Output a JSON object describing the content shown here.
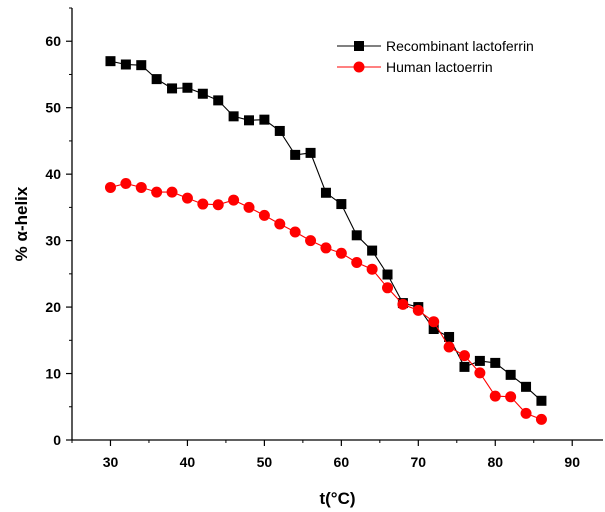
{
  "chart_data": {
    "type": "line",
    "xlabel": "t(°C)",
    "ylabel": "% α-helix",
    "xlim": [
      25,
      94
    ],
    "ylim": [
      0,
      65
    ],
    "xticks": [
      "30",
      "40",
      "50",
      "60",
      "70",
      "80",
      "90"
    ],
    "yticks": [
      "0",
      "10",
      "20",
      "30",
      "40",
      "50",
      "60"
    ],
    "grid": false,
    "legend_position": "top-right",
    "series": [
      {
        "name": "Recombinant lactoferrin",
        "color": "#000000",
        "marker": "square",
        "x": [
          30,
          32,
          34,
          36,
          38,
          40,
          42,
          44,
          46,
          48,
          50,
          52,
          54,
          56,
          58,
          60,
          62,
          64,
          66,
          68,
          70,
          72,
          74,
          76,
          78,
          80,
          82,
          84,
          86
        ],
        "y": [
          57.0,
          56.5,
          56.4,
          54.3,
          52.9,
          53.0,
          52.1,
          51.1,
          48.7,
          48.1,
          48.2,
          46.5,
          42.9,
          43.2,
          37.2,
          35.5,
          30.8,
          28.5,
          24.9,
          20.6,
          20.0,
          16.7,
          15.5,
          11.0,
          11.9,
          11.6,
          9.8,
          8.0,
          5.9
        ]
      },
      {
        "name": "Human lactoerrin",
        "color": "#ff0000",
        "marker": "circle",
        "x": [
          30,
          32,
          34,
          36,
          38,
          40,
          42,
          44,
          46,
          48,
          50,
          52,
          54,
          56,
          58,
          60,
          62,
          64,
          66,
          68,
          70,
          72,
          74,
          76,
          78,
          80,
          82,
          84,
          86
        ],
        "y": [
          38.0,
          38.6,
          38.0,
          37.3,
          37.3,
          36.4,
          35.5,
          35.4,
          36.1,
          35.0,
          33.8,
          32.5,
          31.3,
          30.0,
          28.9,
          28.1,
          26.7,
          25.7,
          22.9,
          20.4,
          19.5,
          17.8,
          14.0,
          12.7,
          10.1,
          6.6,
          6.5,
          4.0,
          3.1
        ]
      }
    ]
  }
}
